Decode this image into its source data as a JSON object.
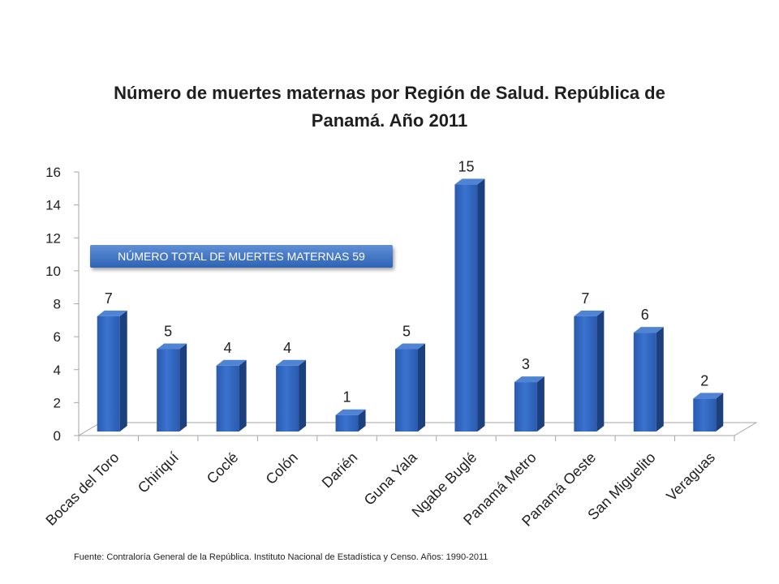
{
  "chart_data": {
    "type": "bar",
    "title": "Número de muertes maternas por Región de Salud. República de Panamá. Año 2011",
    "xlabel": "",
    "ylabel": "",
    "categories": [
      "Bocas del Toro",
      "Chiriquí",
      "Coclé",
      "Colón",
      "Darién",
      "Guna Yala",
      "Ngabe Buglé",
      "Panamá Metro",
      "Panamá Oeste",
      "San Miguelito",
      "Veraguas"
    ],
    "values": [
      7,
      5,
      4,
      4,
      1,
      5,
      15,
      3,
      7,
      6,
      2
    ],
    "ylim": [
      0,
      16
    ],
    "yticks": [
      "0",
      "2",
      "4",
      "6",
      "8",
      "10",
      "12",
      "14",
      "16"
    ],
    "grid": false,
    "legend": "none",
    "annotation": "NÚMERO TOTAL DE MUERTES MATERNAS 59",
    "source": "Fuente: Contraloría General de la República.  Instituto Nacional de Estadística y Censo.  Años: 1990-2011",
    "colors": {
      "bar_front": "#2f66bf",
      "bar_side": "#1c3f7e",
      "bar_top": "#4f83d4",
      "axis": "#a6a6a6"
    }
  }
}
